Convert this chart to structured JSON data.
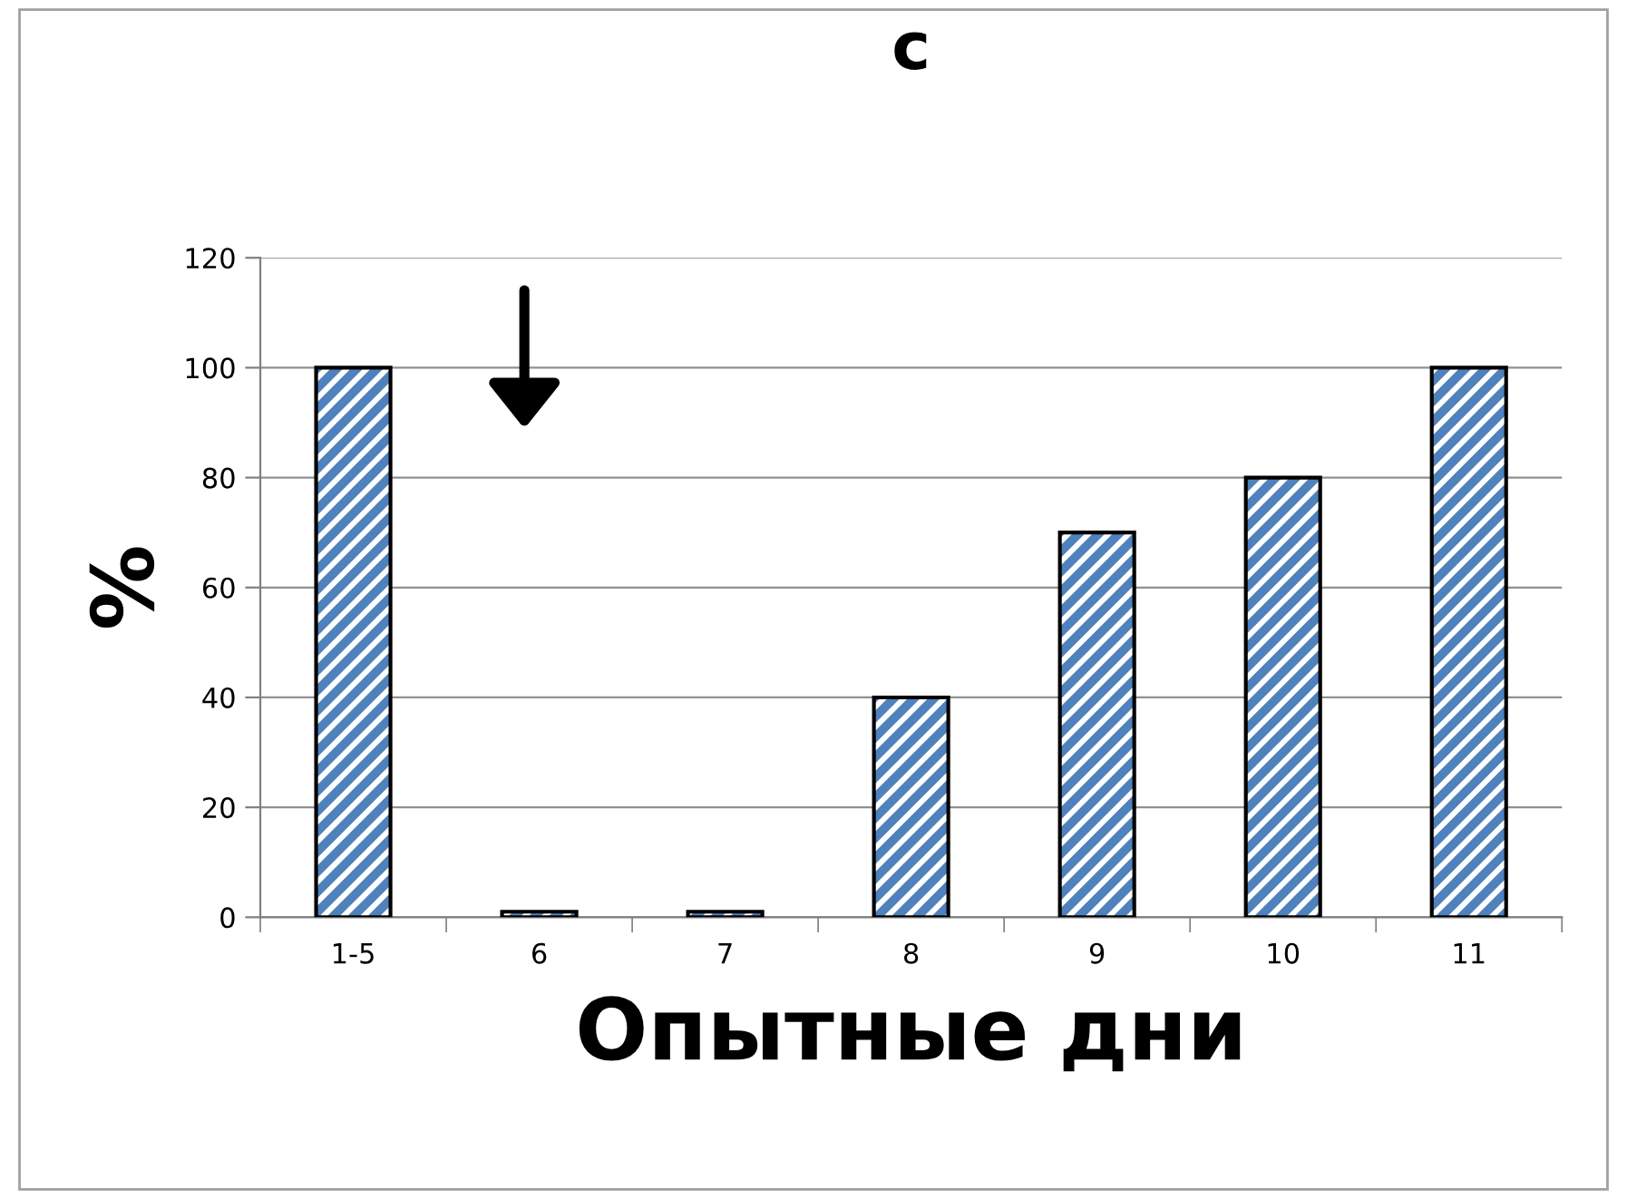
{
  "chart_data": {
    "type": "bar",
    "title": "c",
    "xlabel": "Опытные дни",
    "ylabel": "%",
    "categories": [
      "1-5",
      "6",
      "7",
      "8",
      "9",
      "10",
      "11"
    ],
    "values": [
      100,
      1,
      1,
      40,
      70,
      80,
      100
    ],
    "color": "#4f81bd",
    "ylim": [
      0,
      120
    ],
    "yticks": [
      0,
      20,
      40,
      60,
      80,
      100,
      120
    ],
    "grid": "y"
  }
}
